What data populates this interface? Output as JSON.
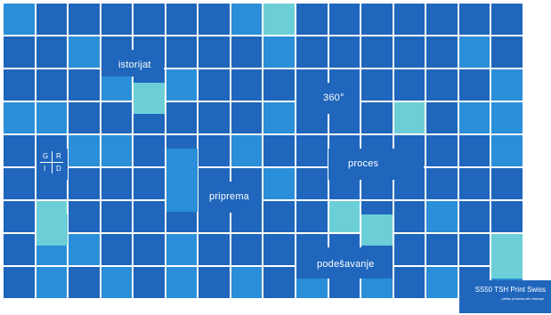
{
  "colors": {
    "background": "#ffffff",
    "dark": "#1f66bc",
    "mid": "#2a8ed8",
    "light": "#6ccfd8",
    "text": "#ffffff"
  },
  "labels": {
    "istorijat": "istorijat",
    "deg360": "360°",
    "proces": "proces",
    "priprema": "priprema",
    "podesavanje": "podešavanje"
  },
  "grid_logo": {
    "letters": [
      "G",
      "R",
      "I",
      "D"
    ]
  },
  "footer": {
    "title": "SS50 TSH Print Swiss",
    "subtitle": "priliaz procesa sito štampe"
  }
}
